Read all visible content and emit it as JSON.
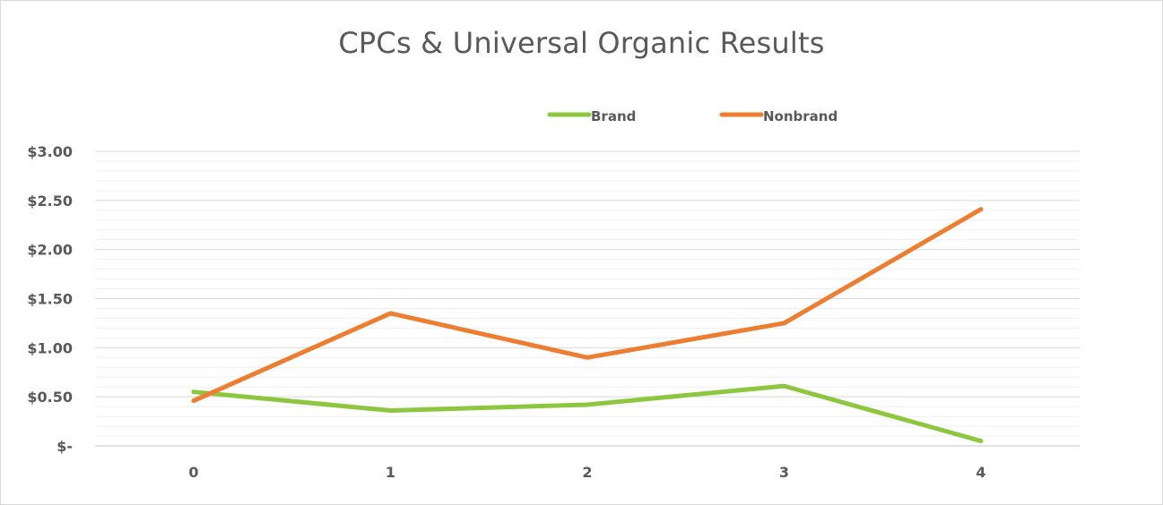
{
  "chart_data": {
    "type": "line",
    "title": "CPCs & Universal Organic Results",
    "xlabel": "",
    "ylabel": "",
    "categories": [
      "0",
      "1",
      "2",
      "3",
      "4"
    ],
    "y_tick_labels": [
      "$-",
      "$0.50",
      "$1.00",
      "$1.50",
      "$2.00",
      "$2.50",
      "$3.00"
    ],
    "ylim": [
      0,
      3.0
    ],
    "y_major_step": 0.5,
    "y_minor_step": 0.1,
    "grid": true,
    "legend_position": "top",
    "series": [
      {
        "name": "Brand",
        "color": "#8dc63f",
        "values": [
          0.55,
          0.36,
          0.42,
          0.61,
          0.05
        ]
      },
      {
        "name": "Nonbrand",
        "color": "#ed7d31",
        "values": [
          0.46,
          1.35,
          0.9,
          1.25,
          2.41
        ]
      }
    ]
  }
}
